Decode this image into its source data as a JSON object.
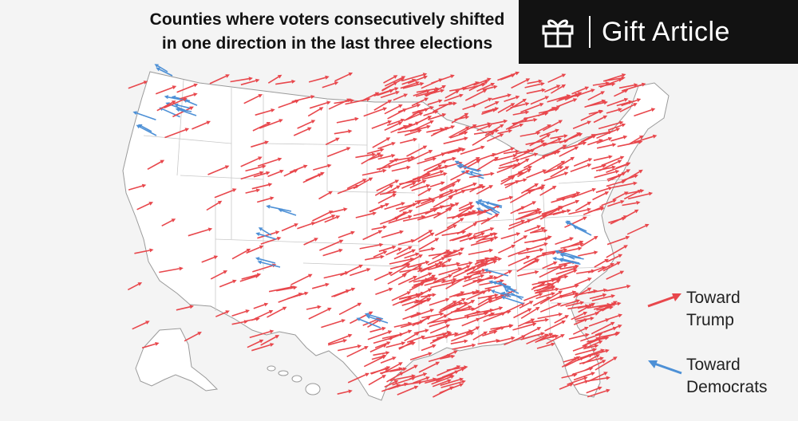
{
  "title": {
    "line1": "Counties where voters consecutively shifted",
    "line2": "in one direction in the last three elections"
  },
  "gift_button": {
    "label": "Gift Article",
    "icon": "gift-icon"
  },
  "legend": {
    "trump": {
      "line1": "Toward",
      "line2": "Trump",
      "color": "#e8474c"
    },
    "dem": {
      "line1": "Toward",
      "line2": "Democrats",
      "color": "#4d90d6"
    }
  },
  "colors": {
    "trump": "#e8474c",
    "dem": "#4d90d6",
    "land": "#ffffff",
    "border": "#c8c8c8",
    "outline": "#9a9a9a"
  }
}
